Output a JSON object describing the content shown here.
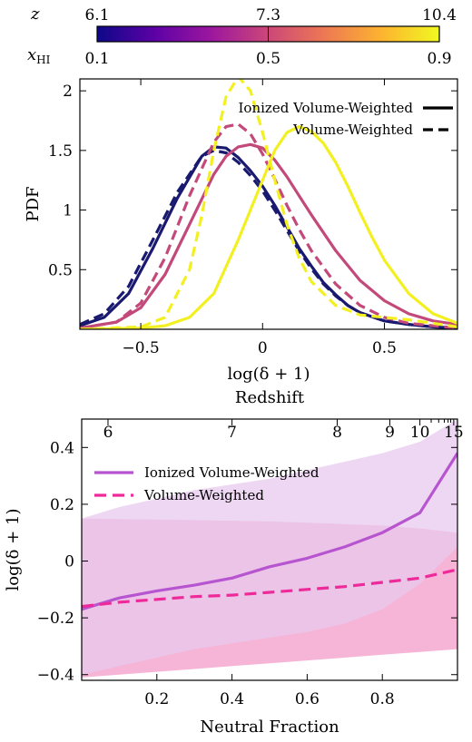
{
  "colorbar": {
    "z_symbol": "z",
    "x_symbol": "x",
    "x_subscript": "HI",
    "z_ticks": [
      "6.1",
      "7.3",
      "10.4"
    ],
    "x_ticks": [
      "0.1",
      "0.5",
      "0.9"
    ],
    "z_tick_positions": [
      0.1,
      0.5,
      0.9
    ],
    "x_tick_positions": [
      0.1,
      0.5,
      0.9
    ],
    "colormap": [
      "#0d0887",
      "#5c01a6",
      "#9c179e",
      "#cc4778",
      "#ed7953",
      "#fdb42f",
      "#f0f921"
    ],
    "range": [
      0.1,
      0.9
    ]
  },
  "chart_data": [
    {
      "type": "line",
      "xlabel": "log(δ + 1)",
      "ylabel": "PDF",
      "xlim": [
        -0.75,
        0.8
      ],
      "ylim": [
        0,
        2.1
      ],
      "xticks": [
        -0.5,
        0,
        0.5
      ],
      "xtick_labels": [
        "−0.5",
        "0",
        "0.5"
      ],
      "yticks": [
        0.5,
        1,
        1.5,
        2
      ],
      "ytick_labels": [
        "0.5",
        "1",
        "1.5",
        "2"
      ],
      "grid": false,
      "legend_position": "top-right",
      "legend": [
        {
          "label": "Ionized Volume-Weighted",
          "style": "solid"
        },
        {
          "label": "Volume-Weighted",
          "style": "dashed"
        }
      ],
      "series": [
        {
          "color": "#191970",
          "style": "solid",
          "x_hi": 0.1,
          "x": [
            -0.75,
            -0.65,
            -0.55,
            -0.45,
            -0.35,
            -0.25,
            -0.2,
            -0.15,
            -0.1,
            -0.05,
            0,
            0.05,
            0.1,
            0.15,
            0.2,
            0.25,
            0.3,
            0.35,
            0.4,
            0.5,
            0.6,
            0.7,
            0.8
          ],
          "y": [
            0.03,
            0.1,
            0.3,
            0.68,
            1.1,
            1.45,
            1.53,
            1.52,
            1.44,
            1.33,
            1.2,
            1.04,
            0.86,
            0.68,
            0.53,
            0.39,
            0.29,
            0.2,
            0.14,
            0.07,
            0.04,
            0.02,
            0.01
          ]
        },
        {
          "color": "#191970",
          "style": "dashed",
          "x_hi": 0.1,
          "x": [
            -0.75,
            -0.65,
            -0.55,
            -0.45,
            -0.35,
            -0.25,
            -0.2,
            -0.15,
            -0.1,
            -0.05,
            0,
            0.05,
            0.1,
            0.15,
            0.2,
            0.25,
            0.3,
            0.35,
            0.4,
            0.5,
            0.6,
            0.7,
            0.8
          ],
          "y": [
            0.04,
            0.13,
            0.36,
            0.75,
            1.15,
            1.45,
            1.5,
            1.48,
            1.4,
            1.29,
            1.16,
            1.0,
            0.83,
            0.66,
            0.51,
            0.38,
            0.28,
            0.2,
            0.14,
            0.07,
            0.04,
            0.02,
            0.01
          ]
        },
        {
          "color": "#c2497a",
          "style": "solid",
          "x_hi": 0.5,
          "x": [
            -0.75,
            -0.6,
            -0.5,
            -0.4,
            -0.3,
            -0.2,
            -0.15,
            -0.1,
            -0.05,
            0,
            0.05,
            0.1,
            0.15,
            0.2,
            0.3,
            0.4,
            0.5,
            0.6,
            0.7,
            0.8
          ],
          "y": [
            0.01,
            0.06,
            0.18,
            0.46,
            0.88,
            1.3,
            1.45,
            1.53,
            1.55,
            1.52,
            1.42,
            1.28,
            1.12,
            0.96,
            0.66,
            0.41,
            0.24,
            0.13,
            0.07,
            0.04
          ]
        },
        {
          "color": "#c2497a",
          "style": "dashed",
          "x_hi": 0.5,
          "x": [
            -0.75,
            -0.6,
            -0.5,
            -0.4,
            -0.3,
            -0.2,
            -0.15,
            -0.1,
            -0.05,
            0,
            0.05,
            0.1,
            0.15,
            0.2,
            0.3,
            0.4,
            0.5,
            0.6,
            0.7,
            0.8
          ],
          "y": [
            0.01,
            0.06,
            0.22,
            0.6,
            1.12,
            1.57,
            1.7,
            1.72,
            1.64,
            1.47,
            1.26,
            1.04,
            0.84,
            0.66,
            0.38,
            0.2,
            0.1,
            0.05,
            0.03,
            0.01
          ]
        },
        {
          "color": "#f3f021",
          "style": "solid",
          "x_hi": 0.9,
          "x": [
            -0.75,
            -0.5,
            -0.4,
            -0.3,
            -0.2,
            -0.1,
            0,
            0.05,
            0.1,
            0.15,
            0.2,
            0.25,
            0.3,
            0.35,
            0.4,
            0.45,
            0.5,
            0.6,
            0.7,
            0.8
          ],
          "y": [
            0.0,
            0.01,
            0.03,
            0.1,
            0.3,
            0.75,
            1.25,
            1.5,
            1.65,
            1.7,
            1.66,
            1.56,
            1.4,
            1.2,
            0.98,
            0.77,
            0.58,
            0.3,
            0.13,
            0.05
          ]
        },
        {
          "color": "#f3f021",
          "style": "dashed",
          "x_hi": 0.9,
          "x": [
            -0.75,
            -0.5,
            -0.4,
            -0.3,
            -0.25,
            -0.2,
            -0.15,
            -0.1,
            -0.05,
            0,
            0.05,
            0.1,
            0.15,
            0.2,
            0.3,
            0.4,
            0.5,
            0.6,
            0.7,
            0.8
          ],
          "y": [
            0.0,
            0.02,
            0.1,
            0.5,
            0.95,
            1.5,
            1.95,
            2.12,
            2.0,
            1.65,
            1.25,
            0.88,
            0.6,
            0.4,
            0.2,
            0.12,
            0.1,
            0.08,
            0.05,
            0.02
          ]
        }
      ]
    },
    {
      "type": "line",
      "xlabel": "Neutral Fraction",
      "ylabel": "log(δ + 1)",
      "top_xlabel": "Redshift",
      "xlim": [
        0,
        1
      ],
      "ylim": [
        -0.42,
        0.5
      ],
      "xticks": [
        0.2,
        0.4,
        0.6,
        0.8
      ],
      "xtick_labels": [
        "0.2",
        "0.4",
        "0.6",
        "0.8"
      ],
      "yticks": [
        -0.4,
        -0.2,
        0,
        0.2,
        0.4
      ],
      "ytick_labels": [
        "−0.4",
        "−0.2",
        "0",
        "0.2",
        "0.4"
      ],
      "top_ticks": [
        {
          "label": "6",
          "x": 0.07
        },
        {
          "label": "7",
          "x": 0.4
        },
        {
          "label": "8",
          "x": 0.68
        },
        {
          "label": "9",
          "x": 0.82
        },
        {
          "label": "10",
          "x": 0.9
        },
        {
          "label": "15",
          "x": 0.99
        }
      ],
      "top_minor_ticks": [
        0.93,
        0.95,
        0.965,
        0.975,
        0.982
      ],
      "grid": false,
      "legend_position": "top-left",
      "legend": [
        {
          "label": "Ionized Volume-Weighted",
          "style": "solid",
          "color": "#b655cf"
        },
        {
          "label": "Volume-Weighted",
          "style": "dashed",
          "color": "#ee2a9a"
        }
      ],
      "series": [
        {
          "name": "Ionized Volume-Weighted",
          "color": "#b655cf",
          "style": "solid",
          "x": [
            0.0,
            0.1,
            0.2,
            0.3,
            0.4,
            0.5,
            0.6,
            0.7,
            0.8,
            0.9,
            1.0
          ],
          "y": [
            -0.17,
            -0.13,
            -0.105,
            -0.085,
            -0.06,
            -0.02,
            0.01,
            0.05,
            0.1,
            0.17,
            0.38
          ],
          "band_lower": [
            -0.4,
            -0.37,
            -0.34,
            -0.31,
            -0.29,
            -0.27,
            -0.25,
            -0.22,
            -0.17,
            -0.08,
            0.05
          ],
          "band_upper": [
            0.15,
            0.19,
            0.22,
            0.25,
            0.27,
            0.29,
            0.32,
            0.35,
            0.38,
            0.42,
            0.5
          ],
          "band_color": "#e8c9ee"
        },
        {
          "name": "Volume-Weighted",
          "color": "#ee2a9a",
          "style": "dashed",
          "x": [
            0.0,
            0.1,
            0.2,
            0.3,
            0.4,
            0.5,
            0.6,
            0.7,
            0.8,
            0.9,
            1.0
          ],
          "y": [
            -0.16,
            -0.145,
            -0.135,
            -0.125,
            -0.12,
            -0.11,
            -0.1,
            -0.09,
            -0.075,
            -0.06,
            -0.03
          ],
          "band_lower": [
            -0.41,
            -0.4,
            -0.39,
            -0.38,
            -0.37,
            -0.36,
            -0.35,
            -0.34,
            -0.33,
            -0.32,
            -0.31
          ],
          "band_upper": [
            0.15,
            0.148,
            0.146,
            0.144,
            0.142,
            0.14,
            0.135,
            0.13,
            0.125,
            0.115,
            0.1
          ],
          "band_color": "#f39bc9"
        }
      ]
    }
  ]
}
